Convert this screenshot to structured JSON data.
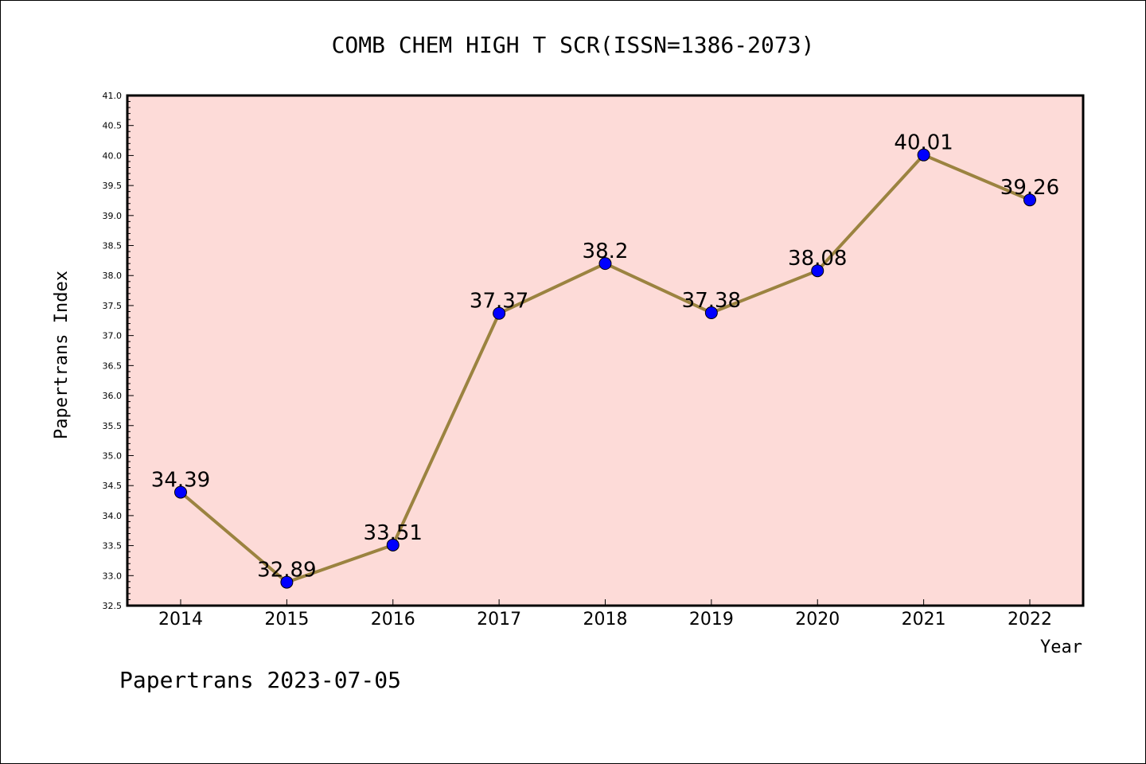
{
  "chart_data": {
    "type": "line",
    "title": "COMB CHEM HIGH T SCR(ISSN=1386-2073)",
    "xlabel": "Year",
    "ylabel": "Papertrans Index",
    "x": [
      "2014",
      "2015",
      "2016",
      "2017",
      "2018",
      "2019",
      "2020",
      "2021",
      "2022"
    ],
    "series": [
      {
        "values": [
          34.39,
          32.89,
          33.51,
          37.37,
          38.2,
          37.38,
          38.08,
          40.01,
          39.26
        ],
        "labels": [
          "34.39",
          "32.89",
          "33.51",
          "37.37",
          "38.2",
          "37.38",
          "38.08",
          "40.01",
          "39.26"
        ]
      }
    ],
    "ylim": [
      32.5,
      41.0
    ],
    "yticks": [
      "32.5",
      "33.0",
      "33.5",
      "34.0",
      "34.5",
      "35.0",
      "35.5",
      "36.0",
      "36.5",
      "37.0",
      "37.5",
      "38.0",
      "38.5",
      "39.0",
      "39.5",
      "40.0",
      "40.5",
      "41.0"
    ],
    "grid": false,
    "colors": {
      "plot_bg": "#fddbd8",
      "line": "#9b8340",
      "marker": "#0000ff"
    }
  },
  "footer": "Papertrans 2023-07-05"
}
